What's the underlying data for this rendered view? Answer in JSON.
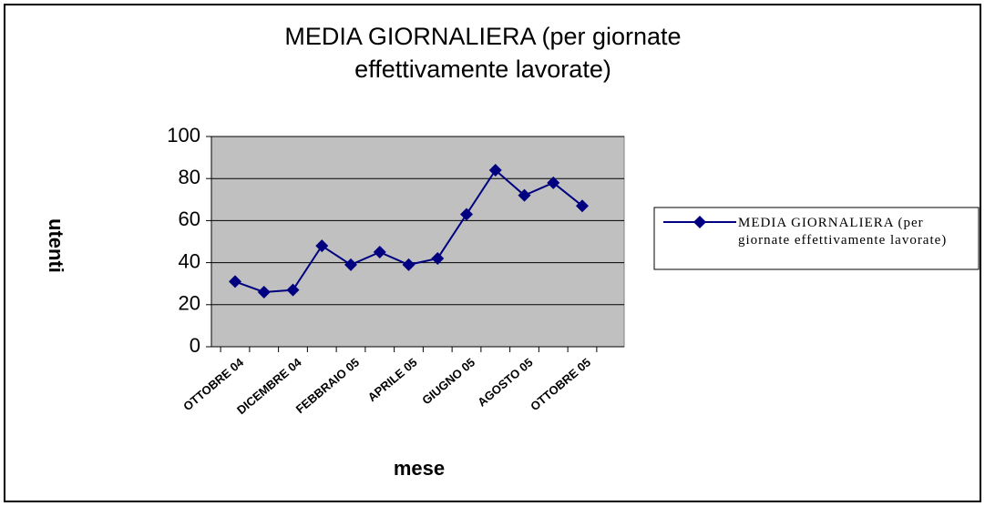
{
  "chart_data": {
    "type": "line",
    "title": "MEDIA GIORNALIERA (per giornate effettivamente lavorate)",
    "x_label": "mese",
    "y_label": "utenti",
    "categories": [
      "OTTOBRE 04",
      null,
      "DICEMBRE 04",
      null,
      "FEBBRAIO 05",
      null,
      "APRILE 05",
      null,
      "GIUGNO 05",
      null,
      "AGOSTO 05",
      null,
      "OTTOBRE 05"
    ],
    "series": [
      {
        "name": "MEDIA GIORNALIERA (per giornate effettivamente lavorate)",
        "color": "#000080",
        "values": [
          31,
          26,
          27,
          48,
          39,
          45,
          39,
          42,
          63,
          84,
          72,
          78,
          67
        ]
      }
    ],
    "ylim": [
      0,
      100
    ],
    "yticks": [
      0,
      20,
      40,
      60,
      80,
      100
    ],
    "grid": true,
    "legend": "right"
  }
}
